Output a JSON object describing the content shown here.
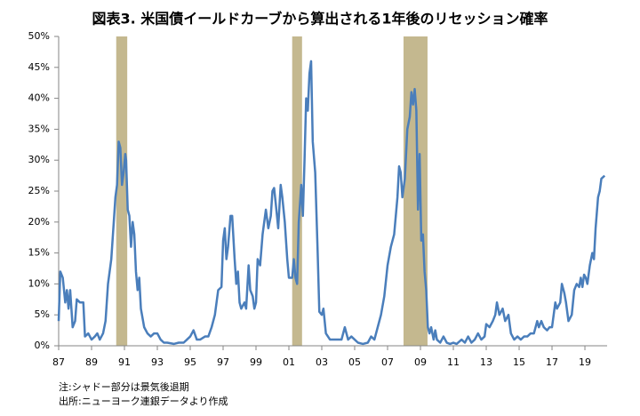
{
  "chart_data": {
    "type": "line",
    "title": "図表3. 米国債イールドカーブから算出される1年後のリセッション確率",
    "notes": [
      "注:シャドー部分は景気後退期",
      "出所:ニューヨーク連銀データより作成"
    ],
    "color": "#4a7ebb",
    "shade_color": "#c4b88f",
    "shaded_periods": [
      [
        1990.5,
        1991.17
      ],
      [
        2001.2,
        2001.8
      ],
      [
        2007.97,
        2009.43
      ]
    ],
    "xlim": [
      1987,
      2020.35
    ],
    "xticks": [
      {
        "value": 1987,
        "label": "87"
      },
      {
        "value": 1989,
        "label": "89"
      },
      {
        "value": 1991,
        "label": "91"
      },
      {
        "value": 1993,
        "label": "93"
      },
      {
        "value": 1995,
        "label": "95"
      },
      {
        "value": 1997,
        "label": "97"
      },
      {
        "value": 1999,
        "label": "99"
      },
      {
        "value": 2001,
        "label": "01"
      },
      {
        "value": 2003,
        "label": "03"
      },
      {
        "value": 2005,
        "label": "05"
      },
      {
        "value": 2007,
        "label": "07"
      },
      {
        "value": 2009,
        "label": "09"
      },
      {
        "value": 2011,
        "label": "11"
      },
      {
        "value": 2013,
        "label": "13"
      },
      {
        "value": 2015,
        "label": "15"
      },
      {
        "value": 2017,
        "label": "17"
      },
      {
        "value": 2019,
        "label": "19"
      }
    ],
    "ylim": [
      0,
      50
    ],
    "yticks": [
      {
        "value": 0,
        "label": "0%"
      },
      {
        "value": 5,
        "label": "5%"
      },
      {
        "value": 10,
        "label": "10%"
      },
      {
        "value": 15,
        "label": "15%"
      },
      {
        "value": 20,
        "label": "20%"
      },
      {
        "value": 25,
        "label": "25%"
      },
      {
        "value": 30,
        "label": "30%"
      },
      {
        "value": 35,
        "label": "35%"
      },
      {
        "value": 40,
        "label": "40%"
      },
      {
        "value": 45,
        "label": "45%"
      },
      {
        "value": 50,
        "label": "50%"
      }
    ],
    "x": [
      1987.0,
      1987.1,
      1987.25,
      1987.4,
      1987.5,
      1987.6,
      1987.7,
      1987.85,
      1988.0,
      1988.1,
      1988.3,
      1988.5,
      1988.6,
      1988.8,
      1989.0,
      1989.2,
      1989.35,
      1989.5,
      1989.7,
      1989.85,
      1990.0,
      1990.2,
      1990.35,
      1990.45,
      1990.55,
      1990.65,
      1990.75,
      1990.85,
      1990.95,
      1991.05,
      1991.1,
      1991.2,
      1991.3,
      1991.4,
      1991.5,
      1991.6,
      1991.7,
      1991.8,
      1991.9,
      1992.0,
      1992.2,
      1992.4,
      1992.6,
      1992.8,
      1993.0,
      1993.2,
      1993.4,
      1993.6,
      1994.0,
      1994.3,
      1994.6,
      1994.8,
      1995.0,
      1995.2,
      1995.4,
      1995.6,
      1995.9,
      1996.1,
      1996.3,
      1996.5,
      1996.7,
      1996.9,
      1997.0,
      1997.1,
      1997.2,
      1997.3,
      1997.45,
      1997.55,
      1997.7,
      1997.8,
      1997.9,
      1998.0,
      1998.1,
      1998.3,
      1998.4,
      1998.55,
      1998.65,
      1998.8,
      1998.9,
      1999.0,
      1999.1,
      1999.25,
      1999.4,
      1999.6,
      1999.75,
      1999.9,
      2000.0,
      2000.1,
      2000.2,
      2000.35,
      2000.5,
      2000.6,
      2000.75,
      2000.9,
      2001.0,
      2001.2,
      2001.3,
      2001.4,
      2001.5,
      2001.6,
      2001.75,
      2001.85,
      2001.95,
      2002.05,
      2002.15,
      2002.25,
      2002.35,
      2002.45,
      2002.6,
      2002.75,
      2002.85,
      2003.0,
      2003.1,
      2003.25,
      2003.5,
      2003.8,
      2004.0,
      2004.2,
      2004.4,
      2004.6,
      2004.8,
      2005.0,
      2005.2,
      2005.5,
      2005.8,
      2006.0,
      2006.2,
      2006.4,
      2006.6,
      2006.8,
      2007.0,
      2007.2,
      2007.4,
      2007.6,
      2007.7,
      2007.8,
      2007.9,
      2008.05,
      2008.2,
      2008.35,
      2008.45,
      2008.55,
      2008.65,
      2008.75,
      2008.85,
      2008.95,
      2009.05,
      2009.15,
      2009.25,
      2009.35,
      2009.45,
      2009.55,
      2009.65,
      2009.8,
      2009.9,
      2010.0,
      2010.2,
      2010.4,
      2010.6,
      2010.8,
      2011.0,
      2011.2,
      2011.5,
      2011.7,
      2011.9,
      2012.1,
      2012.3,
      2012.5,
      2012.7,
      2012.9,
      2013.0,
      2013.2,
      2013.4,
      2013.55,
      2013.65,
      2013.8,
      2014.0,
      2014.15,
      2014.35,
      2014.5,
      2014.7,
      2014.9,
      2015.1,
      2015.3,
      2015.5,
      2015.7,
      2015.9,
      2016.1,
      2016.2,
      2016.35,
      2016.5,
      2016.7,
      2016.85,
      2017.0,
      2017.2,
      2017.3,
      2017.5,
      2017.6,
      2017.75,
      2017.85,
      2018.0,
      2018.2,
      2018.35,
      2018.5,
      2018.65,
      2018.75,
      2018.85,
      2018.95,
      2019.05,
      2019.15,
      2019.3,
      2019.45,
      2019.55,
      2019.65,
      2019.8,
      2019.9,
      2020.0,
      2020.2
    ],
    "values": [
      4,
      12,
      11,
      7,
      9,
      6,
      9,
      3,
      4,
      7.5,
      7,
      7,
      1.5,
      2,
      1,
      1.5,
      2,
      1,
      2,
      4,
      10,
      14,
      20,
      24,
      26,
      33,
      32,
      26,
      28,
      31,
      30,
      22,
      21,
      16,
      20,
      18,
      12,
      9,
      11,
      6,
      3,
      2,
      1.5,
      2,
      2,
      1,
      0.5,
      0.5,
      0.3,
      0.5,
      0.5,
      1,
      1.5,
      2.5,
      1,
      1,
      1.5,
      1.5,
      3,
      5,
      9,
      9.5,
      17,
      19,
      14,
      16,
      21,
      21,
      14,
      10,
      12,
      7,
      6,
      7,
      6,
      13,
      9,
      8,
      6,
      7,
      14,
      13,
      18,
      22,
      19,
      21,
      25,
      25.5,
      23,
      19,
      26,
      24,
      20,
      14,
      11,
      11,
      14,
      11,
      10,
      20,
      26,
      21,
      30,
      40,
      38,
      44,
      46,
      33,
      28,
      15,
      5.5,
      5,
      6,
      2,
      1,
      1,
      1,
      1,
      3,
      1,
      1.5,
      1,
      0.5,
      0.3,
      0.5,
      1.5,
      1,
      3,
      5,
      8,
      13,
      16,
      18,
      24,
      29,
      28,
      24,
      27,
      35,
      37,
      41,
      39,
      41.5,
      38,
      22,
      31,
      17,
      18,
      12,
      9,
      3,
      2,
      3,
      1,
      2.5,
      1,
      0.5,
      1.5,
      0.5,
      0.3,
      0.5,
      0.3,
      1,
      0.5,
      1.5,
      0.5,
      1,
      2,
      1,
      1.5,
      3.5,
      3,
      4,
      5,
      7,
      5,
      6,
      4,
      5,
      2,
      1,
      1.5,
      1,
      1.5,
      1.5,
      2,
      2,
      4,
      3,
      4,
      3,
      2.5,
      3,
      3,
      7,
      6,
      7,
      10,
      8.5,
      7,
      4,
      5,
      9,
      10,
      9.5,
      11,
      9.5,
      11.5,
      11,
      10,
      13,
      15,
      14,
      19,
      24,
      25,
      27,
      27.5
    ]
  }
}
